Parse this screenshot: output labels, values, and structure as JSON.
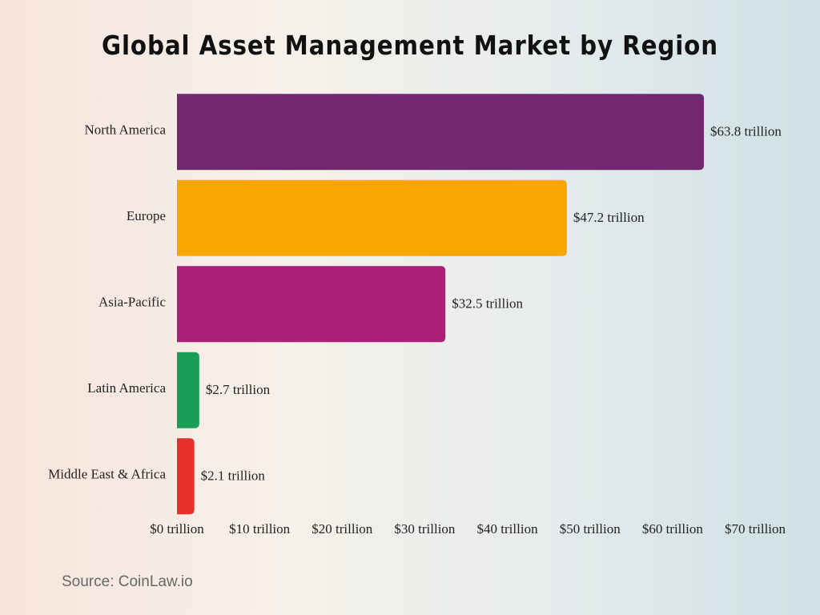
{
  "chart_data": {
    "type": "hbar",
    "title": "Global Asset Management Market by Region",
    "categories": [
      "North America",
      "Europe",
      "Asia-Pacific",
      "Latin America",
      "Middle East & Africa"
    ],
    "values": [
      63.8,
      47.2,
      32.5,
      2.7,
      2.1
    ],
    "value_labels": [
      "$63.8 trillion",
      "$47.2 trillion",
      "$32.5 trillion",
      "$2.7 trillion",
      "$2.1 trillion"
    ],
    "colors": [
      "#722770",
      "#faa602",
      "#ab1e78",
      "#1a9e55",
      "#e6302a"
    ],
    "xlim": [
      0,
      70
    ],
    "xticks": [
      {
        "value": 0,
        "label": "$0 trillion"
      },
      {
        "value": 10,
        "label": "$10 trillion"
      },
      {
        "value": 20,
        "label": "$20 trillion"
      },
      {
        "value": 30,
        "label": "$30 trillion"
      },
      {
        "value": 40,
        "label": "$40 trillion"
      },
      {
        "value": 50,
        "label": "$50 trillion"
      },
      {
        "value": 60,
        "label": "$60 trillion"
      },
      {
        "value": 70,
        "label": "$70 trillion"
      }
    ],
    "grid": false,
    "source": "Source: CoinLaw.io"
  }
}
